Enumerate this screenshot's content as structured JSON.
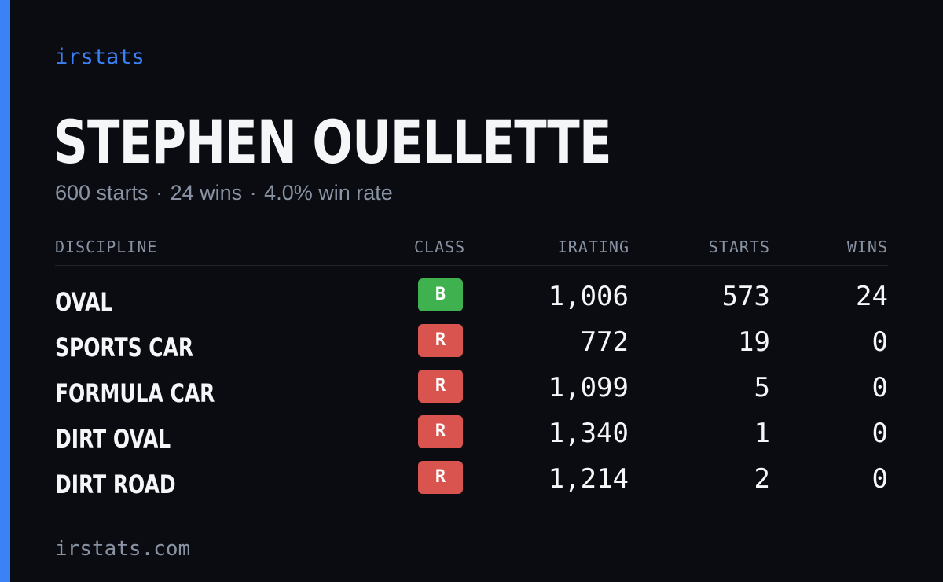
{
  "brand": "irstats",
  "driver": {
    "name": "STEPHEN OUELLETTE"
  },
  "summary": {
    "starts": "600 starts",
    "wins": "24 wins",
    "win_rate": "4.0% win rate",
    "separator": "·"
  },
  "table": {
    "headers": {
      "discipline": "DISCIPLINE",
      "class": "CLASS",
      "irating": "IRATING",
      "starts": "STARTS",
      "wins": "WINS"
    },
    "rows": [
      {
        "discipline": "OVAL",
        "class": "B",
        "class_color": "#3fb14f",
        "irating": "1,006",
        "starts": "573",
        "wins": "24"
      },
      {
        "discipline": "SPORTS CAR",
        "class": "R",
        "class_color": "#d9534f",
        "irating": "772",
        "starts": "19",
        "wins": "0"
      },
      {
        "discipline": "FORMULA CAR",
        "class": "R",
        "class_color": "#d9534f",
        "irating": "1,099",
        "starts": "5",
        "wins": "0"
      },
      {
        "discipline": "DIRT OVAL",
        "class": "R",
        "class_color": "#d9534f",
        "irating": "1,340",
        "starts": "1",
        "wins": "0"
      },
      {
        "discipline": "DIRT ROAD",
        "class": "R",
        "class_color": "#d9534f",
        "irating": "1,214",
        "starts": "2",
        "wins": "0"
      }
    ]
  },
  "footer": "irstats.com",
  "colors": {
    "accent": "#3b82f6",
    "background": "#0a0c12",
    "muted_text": "#8a93a3"
  }
}
